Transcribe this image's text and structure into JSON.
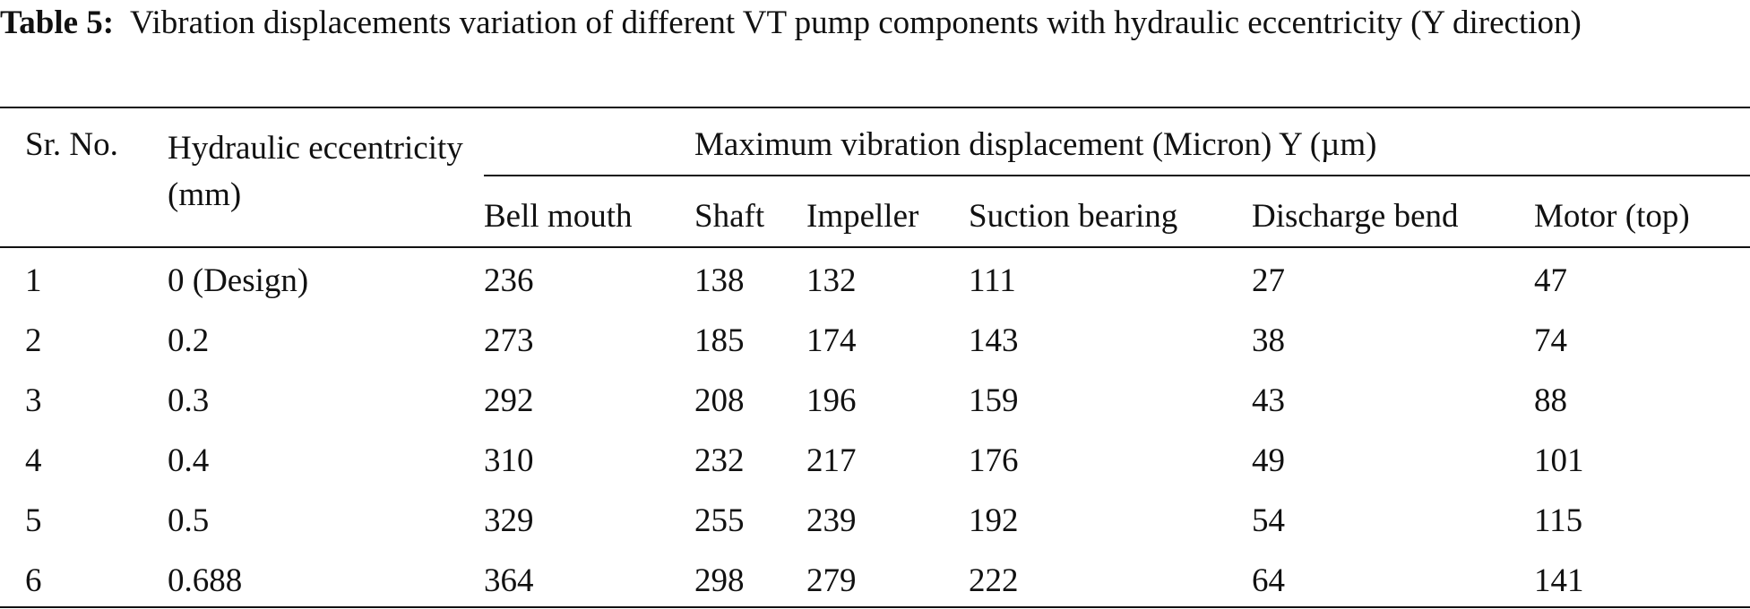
{
  "caption": {
    "label": "Table 5:",
    "text": "Vibration displacements variation of different VT pump components with hydraulic eccentricity (Y direction)"
  },
  "table": {
    "header": {
      "sr_no": "Sr. No.",
      "eccentricity": "Hydraulic eccentricity (mm)",
      "group": "Maximum vibration displacement (Micron) Y (µm)",
      "columns": [
        "Bell mouth",
        "Shaft",
        "Impeller",
        "Suction bearing",
        "Discharge bend",
        "Motor (top)"
      ]
    },
    "rows": [
      [
        "1",
        "0 (Design)",
        "236",
        "138",
        "132",
        "111",
        "27",
        "47"
      ],
      [
        "2",
        "0.2",
        "273",
        "185",
        "174",
        "143",
        "38",
        "74"
      ],
      [
        "3",
        "0.3",
        "292",
        "208",
        "196",
        "159",
        "43",
        "88"
      ],
      [
        "4",
        "0.4",
        "310",
        "232",
        "217",
        "176",
        "49",
        "101"
      ],
      [
        "5",
        "0.5",
        "329",
        "255",
        "239",
        "192",
        "54",
        "115"
      ],
      [
        "6",
        "0.688",
        "364",
        "298",
        "279",
        "222",
        "64",
        "141"
      ]
    ]
  }
}
